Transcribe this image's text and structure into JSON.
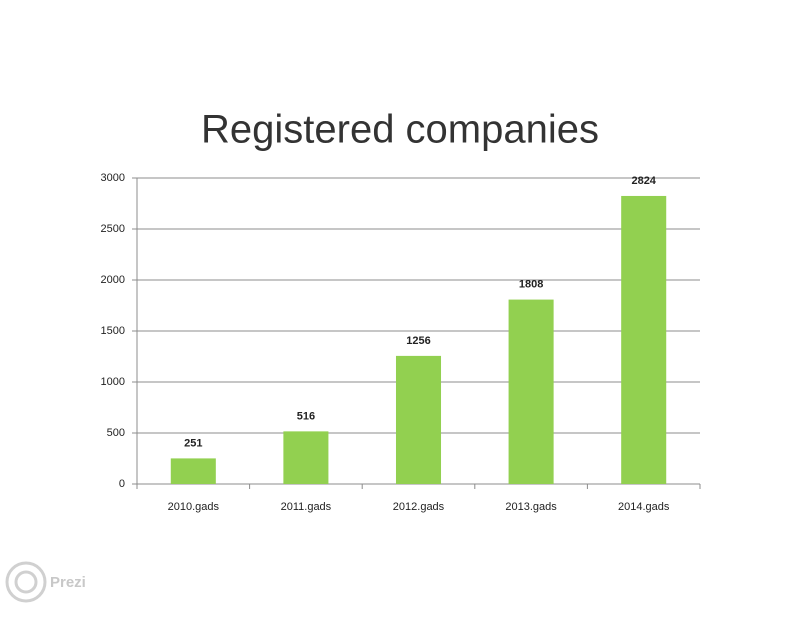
{
  "chart_data": {
    "type": "bar",
    "title": "Registered companies",
    "categories": [
      "2010.gads",
      "2011.gads",
      "2012.gads",
      "2013.gads",
      "2014.gads"
    ],
    "values": [
      251,
      516,
      1256,
      1808,
      2824
    ],
    "color": "#92d050",
    "ylim": [
      0,
      3000
    ],
    "yticks": [
      0,
      500,
      1000,
      1500,
      2000,
      2500,
      3000
    ],
    "grid": true
  },
  "logo": "Prezi"
}
